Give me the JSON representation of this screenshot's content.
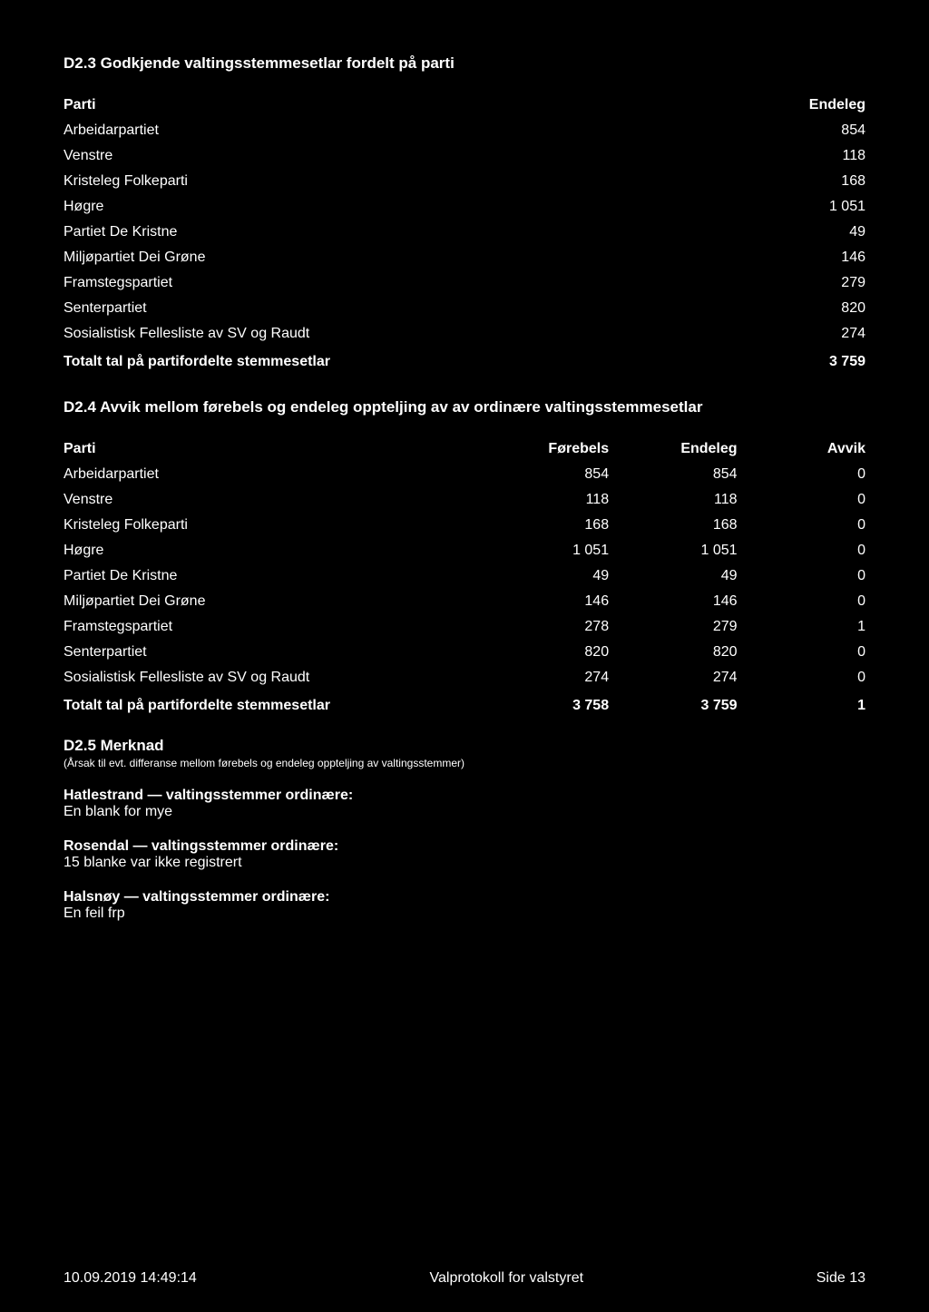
{
  "section_d23": {
    "title": "D2.3 Godkjende valtingsstemmesetlar fordelt på parti",
    "headers": {
      "parti": "Parti",
      "endeleg": "Endeleg"
    },
    "rows": [
      {
        "name": "Arbeidarpartiet",
        "val": "854"
      },
      {
        "name": "Venstre",
        "val": "118"
      },
      {
        "name": "Kristeleg Folkeparti",
        "val": "168"
      },
      {
        "name": "Høgre",
        "val": "1 051"
      },
      {
        "name": "Partiet De Kristne",
        "val": "49"
      },
      {
        "name": "Miljøpartiet Dei Grøne",
        "val": "146"
      },
      {
        "name": "Framstegspartiet",
        "val": "279"
      },
      {
        "name": "Senterpartiet",
        "val": "820"
      },
      {
        "name": "Sosialistisk Fellesliste av SV og Raudt",
        "val": "274"
      }
    ],
    "total": {
      "label": "Totalt tal på partifordelte stemmesetlar",
      "val": "3 759"
    }
  },
  "section_d24": {
    "title": "D2.4 Avvik mellom førebels og endeleg oppteljing av av ordinære valtingsstemmesetlar",
    "headers": {
      "parti": "Parti",
      "forebels": "Førebels",
      "endeleg": "Endeleg",
      "avvik": "Avvik"
    },
    "rows": [
      {
        "name": "Arbeidarpartiet",
        "f": "854",
        "e": "854",
        "a": "0"
      },
      {
        "name": "Venstre",
        "f": "118",
        "e": "118",
        "a": "0"
      },
      {
        "name": "Kristeleg Folkeparti",
        "f": "168",
        "e": "168",
        "a": "0"
      },
      {
        "name": "Høgre",
        "f": "1 051",
        "e": "1 051",
        "a": "0"
      },
      {
        "name": "Partiet De Kristne",
        "f": "49",
        "e": "49",
        "a": "0"
      },
      {
        "name": "Miljøpartiet Dei Grøne",
        "f": "146",
        "e": "146",
        "a": "0"
      },
      {
        "name": "Framstegspartiet",
        "f": "278",
        "e": "279",
        "a": "1"
      },
      {
        "name": "Senterpartiet",
        "f": "820",
        "e": "820",
        "a": "0"
      },
      {
        "name": "Sosialistisk Fellesliste av SV og Raudt",
        "f": "274",
        "e": "274",
        "a": "0"
      }
    ],
    "total": {
      "label": "Totalt tal på partifordelte stemmesetlar",
      "f": "3 758",
      "e": "3 759",
      "a": "1"
    }
  },
  "section_d25": {
    "title": "D2.5 Merknad",
    "note": "(Årsak til evt. differanse mellom førebels og endeleg oppteljing av valtingsstemmer)",
    "remarks": [
      {
        "title": "Hatlestrand — valtingsstemmer ordinære:",
        "text": "En blank for mye"
      },
      {
        "title": "Rosendal — valtingsstemmer ordinære:",
        "text": "15 blanke var ikke registrert"
      },
      {
        "title": "Halsnøy — valtingsstemmer ordinære:",
        "text": "En feil frp"
      }
    ]
  },
  "footer": {
    "left": "10.09.2019 14:49:14",
    "center": "Valprotokoll for valstyret",
    "right": "Side 13"
  }
}
